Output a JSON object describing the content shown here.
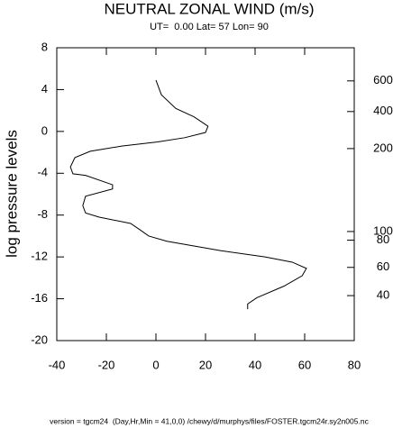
{
  "chart_data": {
    "type": "line",
    "title": "NEUTRAL ZONAL WIND (m/s)",
    "subtitle": "UT=  0.00 Lat= 57 Lon= 90",
    "ylabel": "log pressure levels",
    "footer": "version = tgcm24  (Day,Hr,Min = 41,0,0) /chewy/d/murphys/files/FOSTER.tgcm24r.sy2n005.nc",
    "xlim": [
      -40,
      80
    ],
    "xticks": [
      -40,
      -20,
      0,
      20,
      40,
      60,
      80
    ],
    "ylim": [
      -20,
      8
    ],
    "yticks": [
      8,
      4,
      0,
      -4,
      -8,
      -12,
      -16,
      -20
    ],
    "y2ticks": [
      600,
      400,
      200,
      100,
      80,
      60,
      40
    ],
    "y2tick_levels": [
      4.83,
      1.9,
      -1.64,
      -9.57,
      -10.4,
      -13.0,
      -15.7
    ],
    "color": "#000000",
    "series": [
      {
        "x": [
          0,
          2.2,
          8,
          15.3,
          21,
          20,
          11.6,
          0.7,
          -13.8,
          -26.5,
          -32.7,
          -34.5,
          -33.5,
          -28.4,
          -17.5,
          -17.5,
          -28.4,
          -29.5,
          -28.4,
          -22.9,
          -10.2,
          -6.5,
          -2.9,
          4.4,
          26,
          44,
          55,
          60.7,
          59,
          51.6,
          40.7,
          37,
          37
        ],
        "values": [
          4.9,
          3.5,
          2.2,
          1.4,
          0.5,
          -0.1,
          -0.6,
          -1.0,
          -1.4,
          -1.9,
          -2.5,
          -3.4,
          -4.05,
          -4.2,
          -5.1,
          -5.5,
          -6.2,
          -7.1,
          -7.8,
          -8.2,
          -8.8,
          -9.4,
          -10,
          -10.5,
          -11.4,
          -12,
          -12.5,
          -13.1,
          -13.8,
          -14.8,
          -15.9,
          -16.5,
          -17
        ]
      }
    ]
  }
}
